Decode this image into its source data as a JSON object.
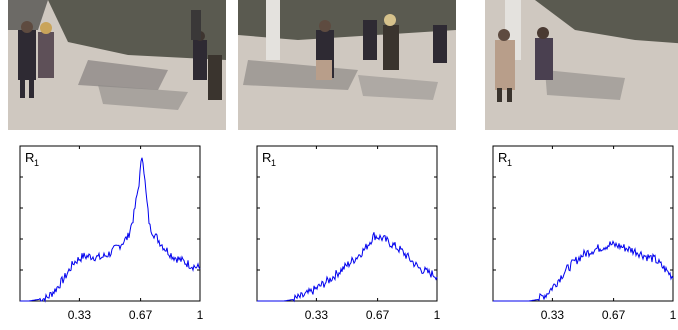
{
  "colors": {
    "series": "#0000ee",
    "axis": "#000000",
    "pavement": "#cfc8c0",
    "shadow": "#8e8a87",
    "grass": "#5a5a50",
    "coat_dark": "#2e2a33",
    "coat_light": "#b89e8a"
  },
  "photos": [
    {
      "scene": "crowd-walking-left"
    },
    {
      "scene": "crowd-walking-center"
    },
    {
      "scene": "two-people-standing"
    }
  ],
  "chart_data": [
    {
      "type": "line",
      "ylabel": "R",
      "ylabel_subscript": "1",
      "xlim": [
        0,
        1
      ],
      "ylim": [
        0,
        1
      ],
      "xticks": [
        0.33,
        0.67,
        1
      ],
      "xtick_labels": [
        "0.33",
        "0.67",
        "1"
      ],
      "x": [
        0.0,
        0.05,
        0.1,
        0.15,
        0.2,
        0.25,
        0.3,
        0.35,
        0.4,
        0.45,
        0.5,
        0.55,
        0.6,
        0.63,
        0.66,
        0.68,
        0.7,
        0.72,
        0.75,
        0.8,
        0.85,
        0.9,
        0.95,
        1.0
      ],
      "series": [
        {
          "values": [
            0.0,
            0.0,
            0.01,
            0.02,
            0.08,
            0.16,
            0.26,
            0.3,
            0.3,
            0.29,
            0.32,
            0.37,
            0.43,
            0.56,
            0.78,
            1.0,
            0.72,
            0.5,
            0.44,
            0.36,
            0.3,
            0.27,
            0.24,
            0.22
          ]
        }
      ]
    },
    {
      "type": "line",
      "ylabel": "R",
      "ylabel_subscript": "1",
      "xlim": [
        0,
        1
      ],
      "ylim": [
        0,
        1
      ],
      "xticks": [
        0.33,
        0.67,
        1
      ],
      "xtick_labels": [
        "0.33",
        "0.67",
        "1"
      ],
      "x": [
        0.0,
        0.05,
        0.1,
        0.15,
        0.2,
        0.25,
        0.3,
        0.35,
        0.4,
        0.45,
        0.5,
        0.55,
        0.6,
        0.65,
        0.7,
        0.75,
        0.8,
        0.85,
        0.9,
        0.95,
        1.0
      ],
      "series": [
        {
          "values": [
            0.0,
            0.0,
            0.0,
            0.0,
            0.01,
            0.03,
            0.06,
            0.1,
            0.14,
            0.19,
            0.24,
            0.29,
            0.35,
            0.44,
            0.42,
            0.38,
            0.34,
            0.28,
            0.22,
            0.19,
            0.17
          ]
        }
      ]
    },
    {
      "type": "line",
      "ylabel": "R",
      "ylabel_subscript": "1",
      "xlim": [
        0,
        1
      ],
      "ylim": [
        0,
        1
      ],
      "xticks": [
        0.33,
        0.67,
        1
      ],
      "xtick_labels": [
        "0.33",
        "0.67",
        "1"
      ],
      "x": [
        0.0,
        0.05,
        0.1,
        0.15,
        0.2,
        0.25,
        0.3,
        0.35,
        0.4,
        0.45,
        0.5,
        0.55,
        0.6,
        0.65,
        0.7,
        0.75,
        0.8,
        0.85,
        0.9,
        0.95,
        1.0
      ],
      "series": [
        {
          "values": [
            0.0,
            0.0,
            0.0,
            0.0,
            0.0,
            0.01,
            0.05,
            0.12,
            0.2,
            0.26,
            0.31,
            0.34,
            0.36,
            0.38,
            0.37,
            0.35,
            0.33,
            0.3,
            0.28,
            0.22,
            0.16
          ]
        }
      ]
    }
  ]
}
